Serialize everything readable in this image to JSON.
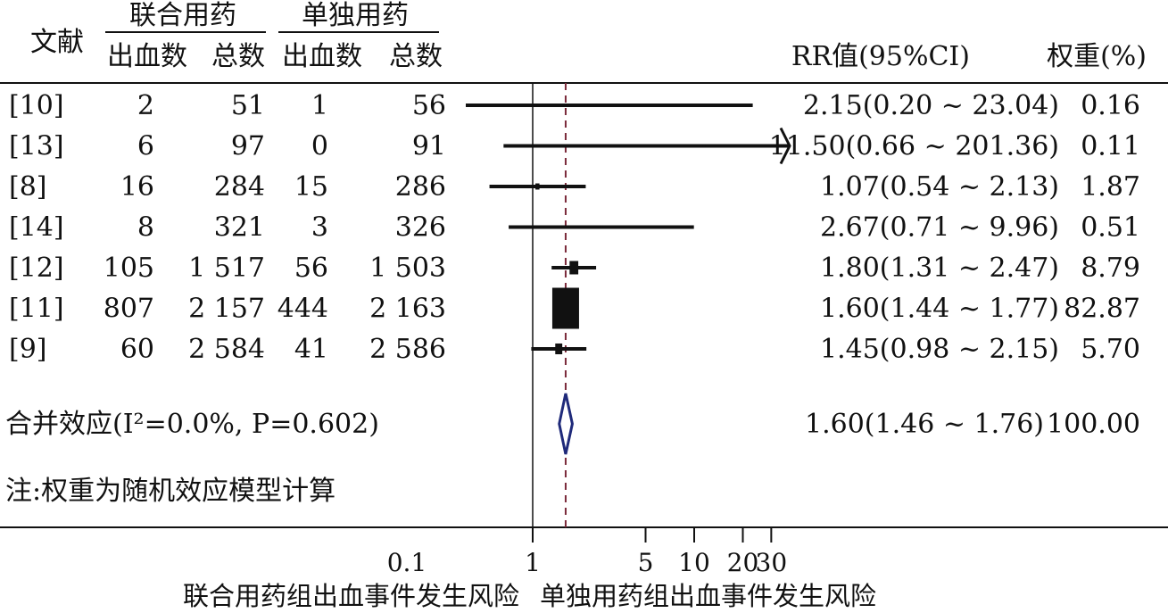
{
  "chart_data": {
    "type": "forest",
    "headers": {
      "study": "文献",
      "group_combined": "联合用药",
      "group_single": "单独用药",
      "bleeding": "出血数",
      "total": "总数",
      "rr": "RR值(95%CI)",
      "weight": "权重(%)"
    },
    "rows": [
      {
        "study": "[10]",
        "comb_events": "2",
        "comb_total": "51",
        "single_events": "1",
        "single_total": "56",
        "rr": 2.15,
        "lo": 0.2,
        "hi": 23.04,
        "weight": 0.16,
        "rr_text": "2.15(0.20 ~ 23.04)",
        "weight_text": "0.16"
      },
      {
        "study": "[13]",
        "comb_events": "6",
        "comb_total": "97",
        "single_events": "0",
        "single_total": "91",
        "rr": 11.5,
        "lo": 0.66,
        "hi": 201.36,
        "weight": 0.11,
        "rr_text": "11.50(0.66 ~ 201.36)",
        "weight_text": "0.11"
      },
      {
        "study": "[8]",
        "comb_events": "16",
        "comb_total": "284",
        "single_events": "15",
        "single_total": "286",
        "rr": 1.07,
        "lo": 0.54,
        "hi": 2.13,
        "weight": 1.87,
        "rr_text": "1.07(0.54 ~ 2.13)",
        "weight_text": "1.87"
      },
      {
        "study": "[14]",
        "comb_events": "8",
        "comb_total": "321",
        "single_events": "3",
        "single_total": "326",
        "rr": 2.67,
        "lo": 0.71,
        "hi": 9.96,
        "weight": 0.51,
        "rr_text": "2.67(0.71 ~ 9.96)",
        "weight_text": "0.51"
      },
      {
        "study": "[12]",
        "comb_events": "105",
        "comb_total": "1 517",
        "single_events": "56",
        "single_total": "1 503",
        "rr": 1.8,
        "lo": 1.31,
        "hi": 2.47,
        "weight": 8.79,
        "rr_text": "1.80(1.31 ~ 2.47)",
        "weight_text": "8.79"
      },
      {
        "study": "[11]",
        "comb_events": "807",
        "comb_total": "2 157",
        "single_events": "444",
        "single_total": "2 163",
        "rr": 1.6,
        "lo": 1.44,
        "hi": 1.77,
        "weight": 82.87,
        "rr_text": "1.60(1.44 ~ 1.77)",
        "weight_text": "82.87"
      },
      {
        "study": "[9]",
        "comb_events": "60",
        "comb_total": "2 584",
        "single_events": "41",
        "single_total": "2 586",
        "rr": 1.45,
        "lo": 0.98,
        "hi": 2.15,
        "weight": 5.7,
        "rr_text": "1.45(0.98 ~ 2.15)",
        "weight_text": "5.70"
      }
    ],
    "pooled": {
      "label": "合并效应(I²=0.0%, P=0.602)",
      "rr": 1.6,
      "lo": 1.46,
      "hi": 1.76,
      "rr_text": "1.60(1.46 ~ 1.76)",
      "weight_text": "100.00"
    },
    "note": "注:权重为随机效应模型计算",
    "x_scale": "log",
    "x_ticks": [
      {
        "value": 0.1,
        "label": "0.1"
      },
      {
        "value": 1,
        "label": "1"
      },
      {
        "value": 5,
        "label": "5"
      },
      {
        "value": 10,
        "label": "10"
      },
      {
        "value": 20,
        "label": "20"
      },
      {
        "value": 30,
        "label": "30"
      }
    ],
    "reference_value": 1,
    "xlabel_left": "联合用药组出血事件发生风险",
    "xlabel_right": "单独用药组出血事件发生风险",
    "colors": {
      "ink": "#111111",
      "pooled_line": "#7a2a3a",
      "diamond": "#1f2a7a"
    }
  }
}
